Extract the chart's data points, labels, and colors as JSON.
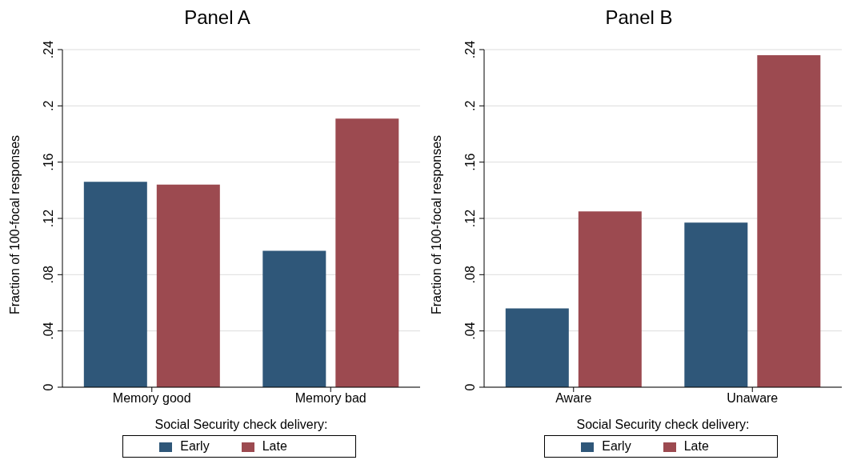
{
  "chart_data": [
    {
      "type": "bar",
      "title": "Panel A",
      "xlabel": "Social Security check delivery:",
      "ylabel": "Fraction of 100-focal responses",
      "categories": [
        "Memory good",
        "Memory bad"
      ],
      "series": [
        {
          "name": "Early",
          "color": "#2f5779",
          "values": [
            0.146,
            0.097
          ]
        },
        {
          "name": "Late",
          "color": "#9c4a50",
          "values": [
            0.144,
            0.191
          ]
        }
      ],
      "ylim": [
        0,
        0.24
      ],
      "yticks": [
        0,
        {
          "value": 0.04,
          "label": ".04"
        },
        {
          "value": 0.08,
          "label": ".08"
        },
        {
          "value": 0.12,
          "label": ".12"
        },
        {
          "value": 0.16,
          "label": ".16"
        },
        {
          "value": 0.2,
          "label": ".2"
        },
        {
          "value": 0.24,
          "label": ".24"
        }
      ],
      "grid": "y",
      "legend": "bottom"
    },
    {
      "type": "bar",
      "title": "Panel B",
      "xlabel": "Social Security check delivery:",
      "ylabel": "Fraction of 100-focal responses",
      "categories": [
        "Aware",
        "Unaware"
      ],
      "series": [
        {
          "name": "Early",
          "color": "#2f5779",
          "values": [
            0.056,
            0.117
          ]
        },
        {
          "name": "Late",
          "color": "#9c4a50",
          "values": [
            0.125,
            0.236
          ]
        }
      ],
      "ylim": [
        0,
        0.24
      ],
      "yticks": [
        0,
        {
          "value": 0.04,
          "label": ".04"
        },
        {
          "value": 0.08,
          "label": ".08"
        },
        {
          "value": 0.12,
          "label": ".12"
        },
        {
          "value": 0.16,
          "label": ".16"
        },
        {
          "value": 0.2,
          "label": ".2"
        },
        {
          "value": 0.24,
          "label": ".24"
        }
      ],
      "grid": "y",
      "legend": "bottom"
    }
  ]
}
